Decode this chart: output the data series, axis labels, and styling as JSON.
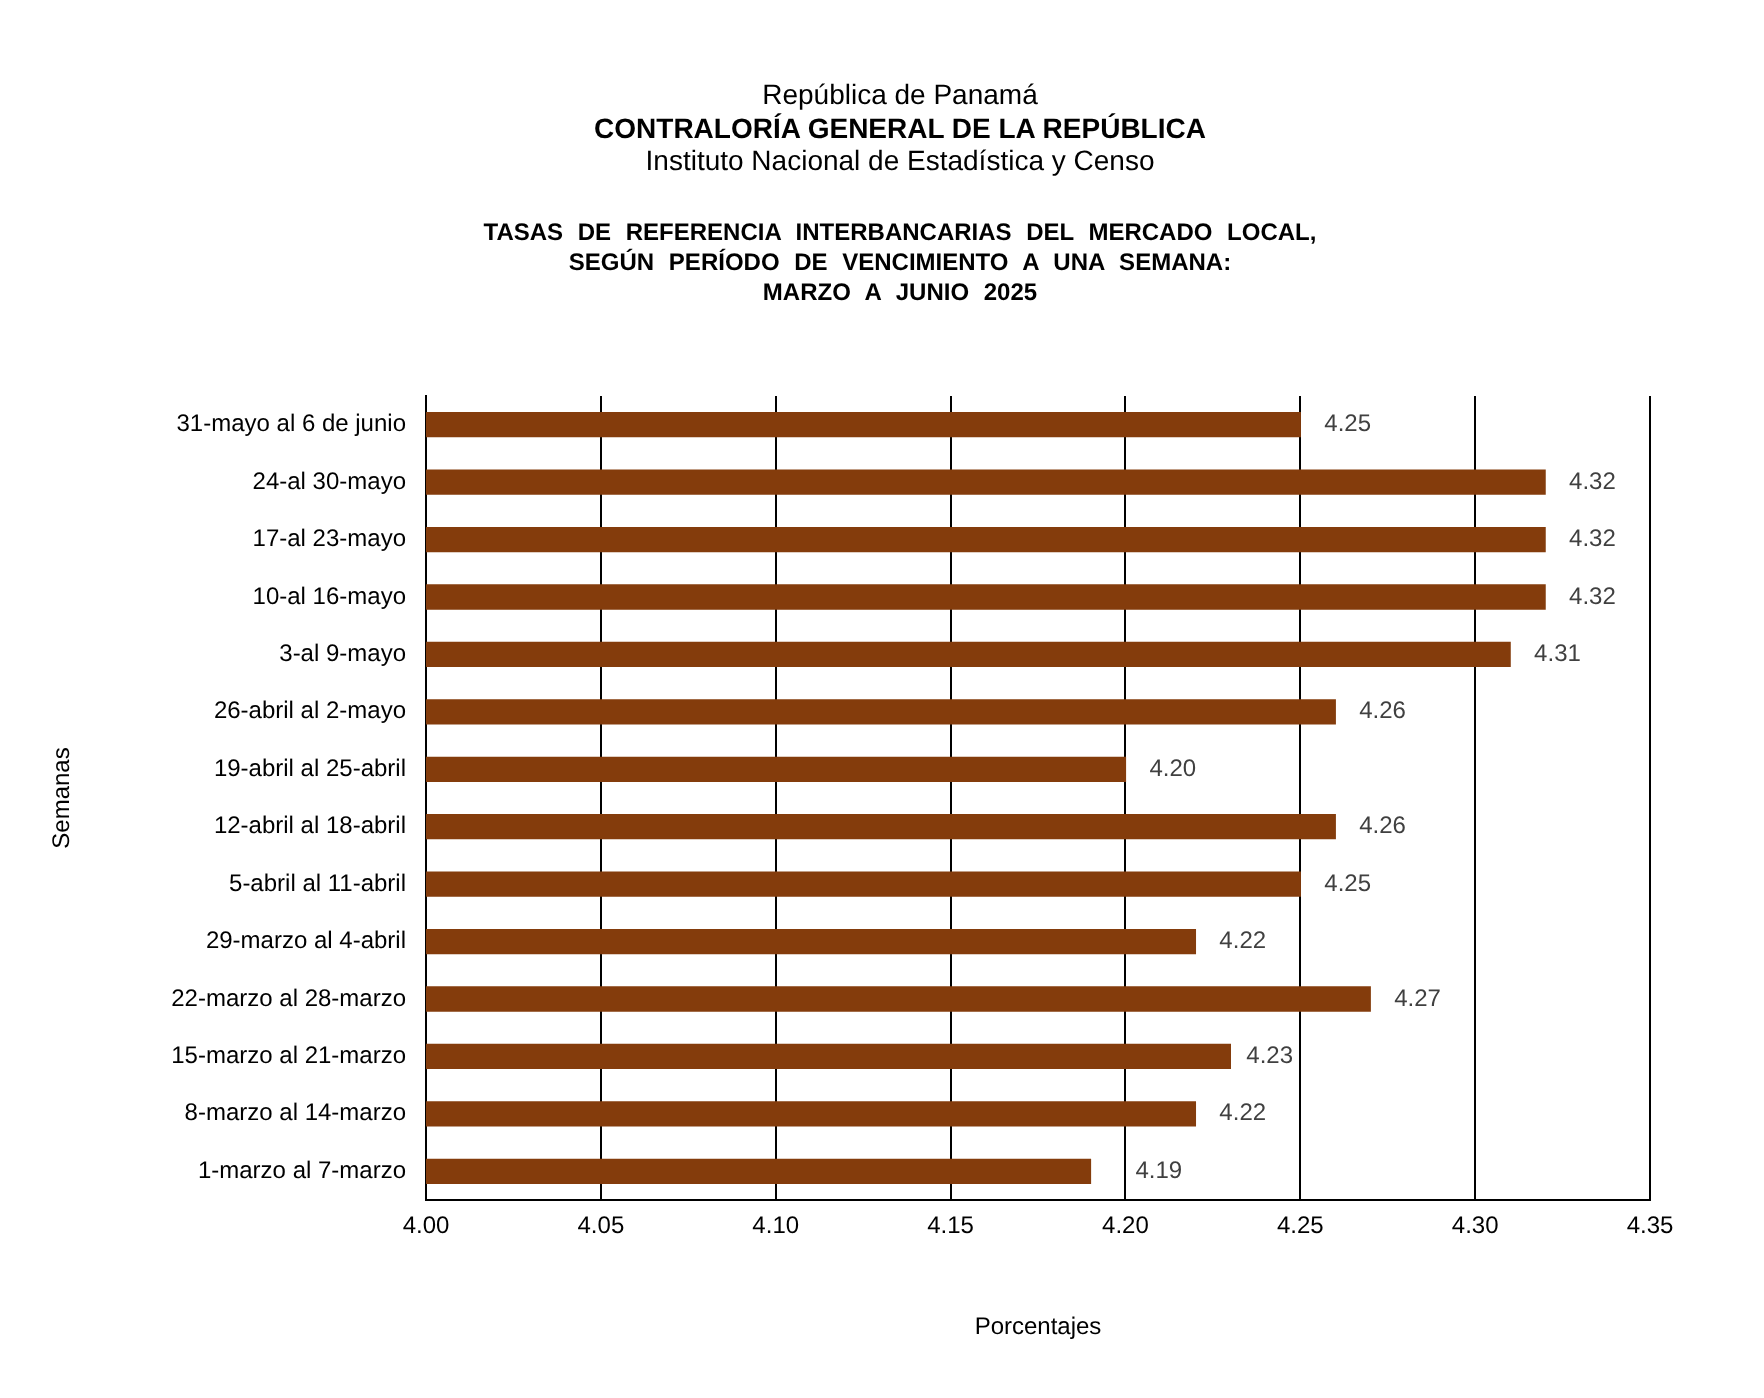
{
  "chart_data": {
    "type": "bar",
    "orientation": "horizontal",
    "annotations": [
      "República de Panamá",
      "CONTRALORÍA GENERAL DE LA REPÚBLICA",
      "Instituto Nacional de Estadística y Censo"
    ],
    "title": "TASAS DE REFERENCIA INTERBANCARIAS DEL MERCADO LOCAL,\nSEGÚN PERÍODO DE VENCIMIENTO A UNA SEMANA:\nMARZO A JUNIO 2025",
    "xlabel": "Porcentajes",
    "ylabel": "Semanas",
    "categories": [
      "31-mayo al 6 de junio",
      "24-al 30-mayo",
      "17-al 23-mayo",
      "10-al 16-mayo",
      "3-al 9-mayo",
      "26-abril al 2-mayo",
      "19-abril al 25-abril",
      "12-abril al 18-abril",
      "5-abril al 11-abril",
      "29-marzo al 4-abril",
      "22-marzo al 28-marzo",
      "15-marzo al 21-marzo",
      "8-marzo al 14-marzo",
      "1-marzo al 7-marzo"
    ],
    "values": [
      4.25,
      4.32,
      4.32,
      4.32,
      4.31,
      4.26,
      4.2,
      4.26,
      4.25,
      4.22,
      4.27,
      4.23,
      4.22,
      4.19
    ],
    "value_labels": [
      "4.25",
      "4.32",
      "4.32",
      "4.32",
      "4.31",
      "4.26",
      "4.20",
      "4.26",
      "4.25",
      "4.22",
      "4.27",
      "4.23",
      "4.22",
      "4.19"
    ],
    "color": "#843c0c",
    "xlim": [
      4,
      4.35
    ],
    "xticks": [
      {
        "value": 4,
        "label": "4.00"
      },
      4.05,
      {
        "value": 4.1,
        "label": "4.10"
      },
      4.15,
      {
        "value": 4.2,
        "label": "4.20"
      },
      4.25,
      {
        "value": 4.3,
        "label": "4.30"
      },
      4.35
    ],
    "grid": "x",
    "legend": false
  }
}
